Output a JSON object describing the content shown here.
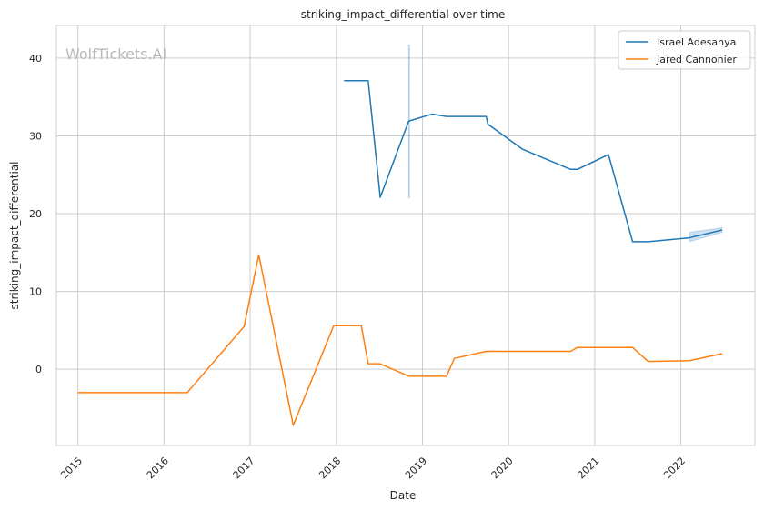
{
  "watermark": "WolfTickets.AI",
  "chart_data": {
    "type": "line",
    "title": "striking_impact_differential over time",
    "xlabel": "Date",
    "ylabel": "striking_impact_differential",
    "xlim": [
      2014.75,
      2022.86
    ],
    "ylim": [
      -9.8,
      44.2
    ],
    "x_ticks": [
      2015,
      2016,
      2017,
      2018,
      2019,
      2020,
      2021,
      2022
    ],
    "x_tick_labels": [
      "2015",
      "2016",
      "2017",
      "2018",
      "2019",
      "2020",
      "2021",
      "2022"
    ],
    "y_ticks": [
      0,
      10,
      20,
      30,
      40
    ],
    "y_tick_labels": [
      "0",
      "10",
      "20",
      "30",
      "40"
    ],
    "grid": true,
    "legend_position": "top-right",
    "series": [
      {
        "name": "Israel Adesanya",
        "color": "#1f77b4",
        "x": [
          2018.09,
          2018.37,
          2018.51,
          2018.84,
          2019.11,
          2019.28,
          2019.74,
          2019.76,
          2020.16,
          2020.72,
          2020.8,
          2021.16,
          2021.44,
          2021.62,
          2022.1,
          2022.48
        ],
        "y": [
          37.1,
          37.1,
          22.1,
          31.9,
          32.8,
          32.5,
          32.5,
          31.5,
          28.3,
          25.7,
          25.7,
          27.6,
          16.4,
          16.4,
          16.9,
          17.9
        ],
        "bands": [
          {
            "x": [
              2018.84,
              2018.85
            ],
            "low": 22.0,
            "high": 41.7
          },
          {
            "x": [
              2022.1,
              2022.48
            ],
            "low": [
              16.4,
              17.6
            ],
            "high": [
              17.6,
              18.2
            ]
          }
        ]
      },
      {
        "name": "Jared Cannonier",
        "color": "#ff7f0e",
        "x": [
          2015.0,
          2016.27,
          2016.93,
          2017.1,
          2017.5,
          2017.97,
          2018.29,
          2018.37,
          2018.51,
          2018.84,
          2019.28,
          2019.37,
          2019.74,
          2020.72,
          2020.8,
          2021.44,
          2021.62,
          2022.1,
          2022.48
        ],
        "y": [
          -3.0,
          -3.0,
          5.5,
          14.7,
          -7.2,
          5.6,
          5.6,
          0.7,
          0.7,
          -0.9,
          -0.9,
          1.4,
          2.3,
          2.3,
          2.8,
          2.8,
          1.0,
          1.1,
          2.0
        ]
      }
    ]
  }
}
